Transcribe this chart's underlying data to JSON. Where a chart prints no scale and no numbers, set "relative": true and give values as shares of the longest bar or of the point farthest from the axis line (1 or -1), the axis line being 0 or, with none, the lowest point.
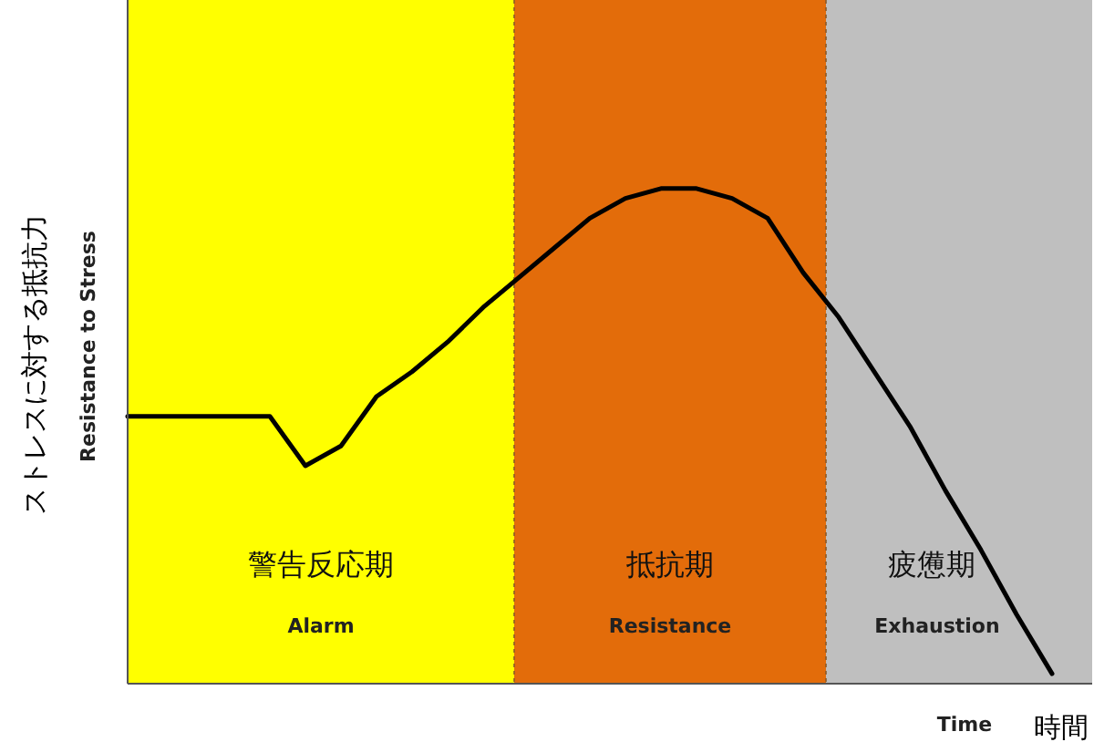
{
  "chart_data": {
    "type": "line",
    "relative": true,
    "xlabel": "時間",
    "ylabel": "ストレスに対する抵抗力",
    "marker": "none",
    "line_style": "solid",
    "categories": [
      null,
      null,
      null,
      null,
      null,
      null,
      null,
      null,
      null,
      null,
      null,
      null,
      null,
      null,
      null,
      null,
      null,
      null,
      null,
      null,
      null,
      null,
      null,
      null,
      null,
      null,
      null
    ],
    "series": [
      {
        "color": "#000000",
        "values": [
          0.54,
          0.54,
          0.54,
          0.54,
          0.54,
          0.44,
          0.48,
          0.58,
          0.63,
          0.69,
          0.76,
          0.82,
          0.88,
          0.94,
          0.98,
          1.0,
          1.0,
          0.98,
          0.94,
          0.83,
          0.74,
          0.63,
          0.52,
          0.39,
          0.27,
          0.14,
          0.02
        ]
      }
    ],
    "annotations": [
      "警告反応期",
      "抵抗期",
      "疲憊期",
      "Alarm",
      "Resistance",
      "Exhaustion",
      "Resistance to Stress",
      "Time"
    ]
  }
}
